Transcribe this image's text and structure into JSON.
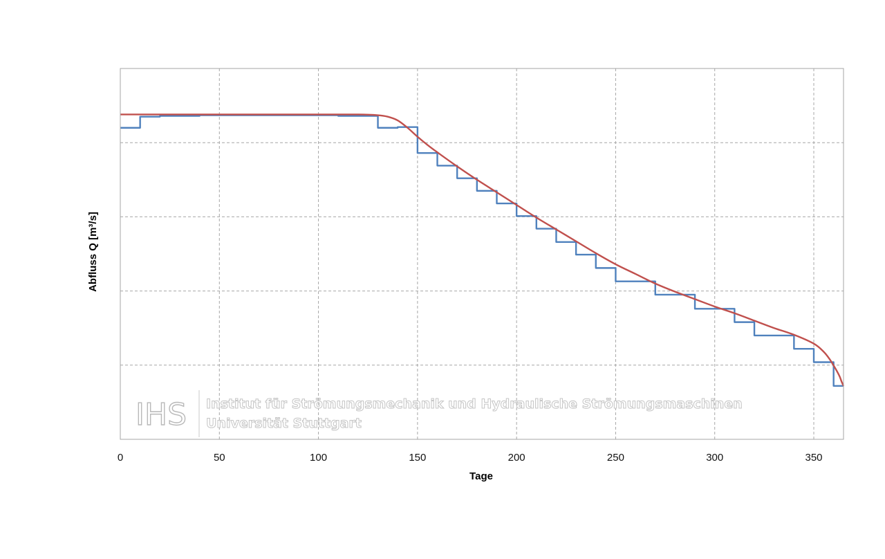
{
  "chart_data": {
    "type": "line",
    "xlabel": "Tage",
    "ylabel": "Abfluss Q [m³/s]",
    "xlim": [
      0,
      365
    ],
    "ylim": [
      0,
      5
    ],
    "x_ticks": [
      0,
      50,
      100,
      150,
      200,
      250,
      300,
      350
    ],
    "y_ticks": [
      1,
      2,
      3,
      4
    ],
    "y_tick_labels_visible": false,
    "grid": true,
    "grid_style": "dashed",
    "legend": "none",
    "series": [
      {
        "kind": "step",
        "color": "#4f81bd",
        "x": [
          0,
          10,
          20,
          30,
          40,
          50,
          60,
          70,
          80,
          90,
          100,
          110,
          120,
          130,
          140,
          150,
          160,
          170,
          180,
          190,
          200,
          210,
          220,
          230,
          240,
          250,
          260,
          270,
          280,
          290,
          300,
          310,
          320,
          330,
          340,
          350,
          360,
          365
        ],
        "y": [
          4.2,
          4.35,
          4.36,
          4.36,
          4.37,
          4.37,
          4.37,
          4.37,
          4.37,
          4.37,
          4.37,
          4.36,
          4.36,
          4.2,
          4.21,
          3.86,
          3.69,
          3.52,
          3.35,
          3.18,
          3.01,
          2.84,
          2.66,
          2.49,
          2.31,
          2.13,
          2.13,
          1.95,
          1.95,
          1.76,
          1.76,
          1.58,
          1.4,
          1.4,
          1.22,
          1.04,
          0.72,
          0.72
        ]
      },
      {
        "kind": "smooth",
        "color": "#c0504d",
        "x": [
          0,
          20,
          40,
          60,
          80,
          100,
          120,
          130,
          135,
          140,
          145,
          150,
          155,
          160,
          170,
          180,
          190,
          200,
          210,
          220,
          230,
          240,
          250,
          260,
          270,
          280,
          290,
          300,
          310,
          320,
          330,
          340,
          350,
          355,
          358,
          361,
          363,
          364,
          365
        ],
        "y": [
          4.38,
          4.38,
          4.38,
          4.38,
          4.38,
          4.38,
          4.38,
          4.37,
          4.35,
          4.3,
          4.2,
          4.08,
          3.97,
          3.87,
          3.68,
          3.5,
          3.33,
          3.16,
          2.99,
          2.83,
          2.67,
          2.51,
          2.36,
          2.23,
          2.1,
          1.99,
          1.89,
          1.79,
          1.7,
          1.6,
          1.5,
          1.41,
          1.29,
          1.18,
          1.08,
          0.95,
          0.85,
          0.78,
          0.72
        ]
      }
    ]
  },
  "watermark": {
    "logo": "IHS",
    "line1": "Institut für Strömungsmechanik und Hydraulische Strömungsmaschinen",
    "line2": "Universität Stuttgart"
  }
}
